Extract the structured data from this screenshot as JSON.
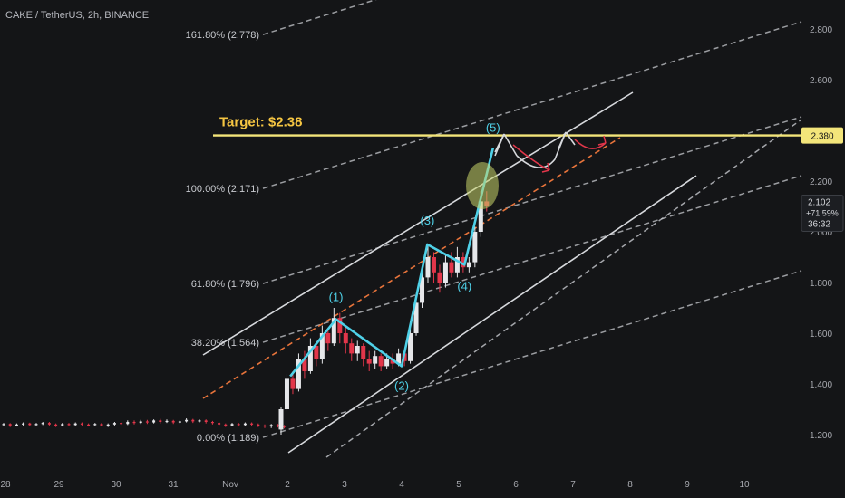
{
  "chart_data": {
    "type": "candlestick",
    "title": "CAKE / TetherUS, 2h, BINANCE",
    "x_ticks": [
      "28",
      "29",
      "30",
      "31",
      "Nov",
      "2",
      "3",
      "4",
      "5",
      "6",
      "7",
      "8",
      "9",
      "10"
    ],
    "y_ticks": [
      "2.800",
      "2.600",
      "2.400",
      "2.200",
      "2.000",
      "1.800",
      "1.600",
      "1.400",
      "1.200"
    ],
    "ylim": [
      1.12,
      2.92
    ],
    "target_label": "Target: $2.38",
    "target_value": 2.38,
    "target_price_label": "2.380",
    "current_price": {
      "price": "2.102",
      "change": "+71.59%",
      "countdown": "36:32",
      "value": 2.102
    },
    "fib_levels": [
      {
        "label": "161.80% (2.778)",
        "value": 2.778
      },
      {
        "label": "100.00% (2.171)",
        "value": 2.171
      },
      {
        "label": "61.80% (1.796)",
        "value": 1.796
      },
      {
        "label": "38.20% (1.564)",
        "value": 1.564
      },
      {
        "label": "0.00% (1.189)",
        "value": 1.189
      }
    ],
    "waves": [
      {
        "label": "(1)",
        "x": 2.85,
        "y": 1.655
      },
      {
        "label": "(2)",
        "x": 4.0,
        "y": 1.47
      },
      {
        "label": "(3)",
        "x": 4.45,
        "y": 1.95
      },
      {
        "label": "(4)",
        "x": 5.1,
        "y": 1.87
      },
      {
        "label": "(5)",
        "x": 5.6,
        "y": 2.33
      }
    ],
    "wave_path": [
      [
        2.05,
        1.43
      ],
      [
        2.85,
        1.655
      ],
      [
        4.0,
        1.47
      ],
      [
        4.45,
        1.95
      ],
      [
        5.1,
        1.87
      ],
      [
        5.6,
        2.33
      ]
    ],
    "flat_candles": [
      [
        -2.6,
        1.238,
        1.242,
        1.232,
        1.246
      ],
      [
        -2.4,
        1.242,
        1.236,
        1.23,
        1.245
      ],
      [
        -2.2,
        1.236,
        1.24,
        1.232,
        1.244
      ],
      [
        -2.0,
        1.24,
        1.244,
        1.236,
        1.248
      ],
      [
        -1.8,
        1.244,
        1.238,
        1.233,
        1.247
      ],
      [
        -1.6,
        1.238,
        1.242,
        1.234,
        1.246
      ],
      [
        -1.4,
        1.242,
        1.246,
        1.238,
        1.25
      ],
      [
        -1.2,
        1.246,
        1.24,
        1.236,
        1.25
      ],
      [
        -1.0,
        1.24,
        1.236,
        1.23,
        1.244
      ],
      [
        -0.8,
        1.236,
        1.242,
        1.232,
        1.246
      ],
      [
        -0.6,
        1.242,
        1.238,
        1.234,
        1.246
      ],
      [
        -0.4,
        1.238,
        1.244,
        1.234,
        1.248
      ],
      [
        -0.2,
        1.244,
        1.24,
        1.236,
        1.248
      ],
      [
        0.0,
        1.24,
        1.238,
        1.232,
        1.244
      ],
      [
        0.2,
        1.238,
        1.242,
        1.234,
        1.246
      ],
      [
        0.4,
        1.242,
        1.236,
        1.232,
        1.246
      ],
      [
        0.6,
        1.236,
        1.24,
        1.23,
        1.244
      ],
      [
        0.8,
        1.24,
        1.246,
        1.236,
        1.25
      ],
      [
        1.0,
        1.246,
        1.242,
        1.238,
        1.25
      ],
      [
        1.2,
        1.242,
        1.25,
        1.238,
        1.256
      ],
      [
        1.4,
        1.25,
        1.246,
        1.24,
        1.256
      ],
      [
        1.6,
        1.246,
        1.252,
        1.242,
        1.258
      ],
      [
        1.8,
        1.252,
        1.248,
        1.242,
        1.258
      ],
      [
        2.0,
        1.248,
        1.256,
        1.244,
        1.26
      ],
      [
        2.2,
        1.256,
        1.25,
        1.244,
        1.262
      ],
      [
        2.4,
        1.25,
        1.254,
        1.246,
        1.26
      ],
      [
        2.6,
        1.254,
        1.248,
        1.242,
        1.258
      ],
      [
        2.8,
        1.248,
        1.252,
        1.244,
        1.256
      ],
      [
        3.0,
        1.252,
        1.258,
        1.248,
        1.264
      ],
      [
        3.2,
        1.258,
        1.252,
        1.246,
        1.262
      ],
      [
        3.4,
        1.252,
        1.256,
        1.248,
        1.26
      ],
      [
        3.6,
        1.256,
        1.25,
        1.244,
        1.26
      ],
      [
        3.8,
        1.25,
        1.246,
        1.24,
        1.254
      ],
      [
        4.0,
        1.246,
        1.24,
        1.236,
        1.25
      ],
      [
        4.2,
        1.24,
        1.236,
        1.23,
        1.244
      ],
      [
        4.4,
        1.236,
        1.242,
        1.232,
        1.246
      ],
      [
        4.6,
        1.242,
        1.238,
        1.232,
        1.246
      ],
      [
        4.8,
        1.238,
        1.244,
        1.234,
        1.248
      ],
      [
        5.0,
        1.244,
        1.24,
        1.234,
        1.248
      ],
      [
        5.2,
        1.24,
        1.236,
        1.23,
        1.244
      ],
      [
        5.4,
        1.236,
        1.232,
        1.226,
        1.24
      ],
      [
        5.6,
        1.232,
        1.238,
        1.226,
        1.242
      ],
      [
        5.8,
        1.238,
        1.234,
        1.228,
        1.242
      ],
      [
        6.0,
        1.234,
        1.23,
        1.224,
        1.238
      ]
    ],
    "rally_candles": [
      [
        6.2,
        1.22,
        1.3,
        1.2,
        1.31
      ],
      [
        6.35,
        1.3,
        1.42,
        1.29,
        1.44
      ],
      [
        6.5,
        1.42,
        1.38,
        1.36,
        1.45
      ],
      [
        6.65,
        1.38,
        1.5,
        1.37,
        1.52
      ],
      [
        6.8,
        1.5,
        1.45,
        1.42,
        1.53
      ],
      [
        6.95,
        1.45,
        1.55,
        1.44,
        1.58
      ],
      [
        7.1,
        1.55,
        1.5,
        1.47,
        1.57
      ],
      [
        7.25,
        1.5,
        1.6,
        1.48,
        1.63
      ],
      [
        7.4,
        1.6,
        1.56,
        1.53,
        1.62
      ],
      [
        7.55,
        1.56,
        1.66,
        1.55,
        1.7
      ],
      [
        7.7,
        1.66,
        1.6,
        1.56,
        1.68
      ],
      [
        7.85,
        1.6,
        1.56,
        1.52,
        1.63
      ],
      [
        8.0,
        1.56,
        1.52,
        1.49,
        1.58
      ],
      [
        8.15,
        1.52,
        1.55,
        1.49,
        1.57
      ],
      [
        8.3,
        1.55,
        1.5,
        1.47,
        1.56
      ],
      [
        8.45,
        1.5,
        1.48,
        1.45,
        1.53
      ],
      [
        8.6,
        1.48,
        1.51,
        1.46,
        1.53
      ],
      [
        8.75,
        1.51,
        1.47,
        1.45,
        1.52
      ],
      [
        8.9,
        1.47,
        1.5,
        1.46,
        1.52
      ],
      [
        9.05,
        1.5,
        1.48,
        1.46,
        1.52
      ],
      [
        9.2,
        1.48,
        1.52,
        1.47,
        1.54
      ],
      [
        9.35,
        1.52,
        1.49,
        1.47,
        1.53
      ],
      [
        9.5,
        1.49,
        1.6,
        1.48,
        1.62
      ],
      [
        9.65,
        1.6,
        1.72,
        1.59,
        1.74
      ],
      [
        9.8,
        1.72,
        1.82,
        1.7,
        1.86
      ],
      [
        9.95,
        1.82,
        1.9,
        1.8,
        1.95
      ],
      [
        10.1,
        1.9,
        1.84,
        1.8,
        1.92
      ],
      [
        10.25,
        1.84,
        1.8,
        1.76,
        1.87
      ],
      [
        10.4,
        1.8,
        1.88,
        1.78,
        1.91
      ],
      [
        10.55,
        1.88,
        1.84,
        1.82,
        1.92
      ],
      [
        10.7,
        1.84,
        1.9,
        1.82,
        1.94
      ],
      [
        10.85,
        1.9,
        1.86,
        1.84,
        1.92
      ],
      [
        11.0,
        1.86,
        1.88,
        1.84,
        1.9
      ],
      [
        11.15,
        1.88,
        2.0,
        1.86,
        2.02
      ],
      [
        11.3,
        2.0,
        2.12,
        1.98,
        2.16
      ],
      [
        11.45,
        2.12,
        2.102,
        2.08,
        2.16
      ]
    ]
  }
}
